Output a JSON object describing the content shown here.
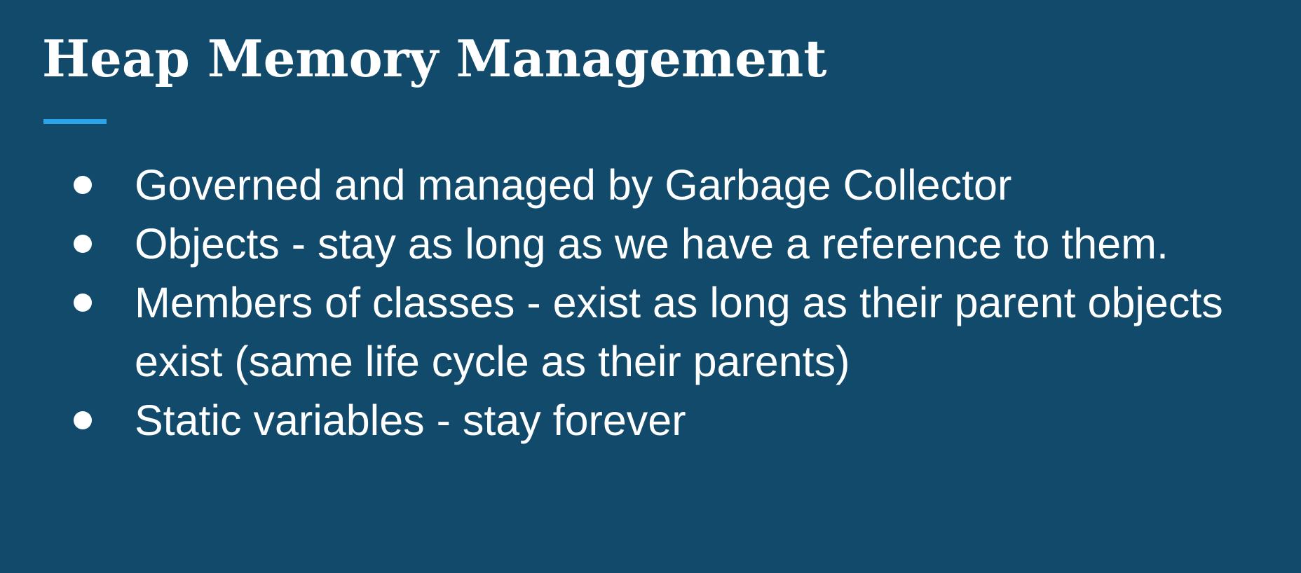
{
  "slide": {
    "title": "Heap Memory Management",
    "bullets": [
      "Governed and managed by Garbage Collector",
      "Objects - stay as long as we have a reference to them.",
      "Members of classes - exist as long as their parent objects exist (same life cycle as their parents)",
      "Static variables - stay forever"
    ]
  },
  "colors": {
    "background": "#114a6b",
    "text": "#ffffff",
    "accent": "#2aa3e8"
  }
}
